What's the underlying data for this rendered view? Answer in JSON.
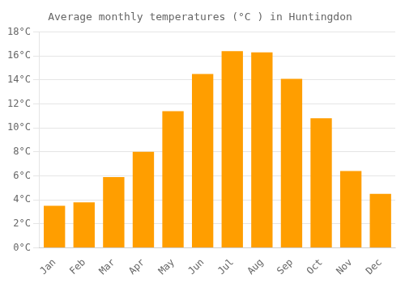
{
  "chart_data": {
    "type": "bar",
    "title": "Average monthly temperatures (°C ) in Huntingdon",
    "categories": [
      "Jan",
      "Feb",
      "Mar",
      "Apr",
      "May",
      "Jun",
      "Jul",
      "Aug",
      "Sep",
      "Oct",
      "Nov",
      "Dec"
    ],
    "values": [
      3.5,
      3.8,
      5.9,
      8.0,
      11.4,
      14.5,
      16.4,
      16.3,
      14.1,
      10.8,
      6.4,
      4.5
    ],
    "color": "#ff9e00",
    "ylim": [
      0,
      18
    ],
    "yticks": [
      {
        "value": 0,
        "label": "0°C"
      },
      {
        "value": 2,
        "label": "2°C"
      },
      {
        "value": 4,
        "label": "4°C"
      },
      {
        "value": 6,
        "label": "6°C"
      },
      {
        "value": 8,
        "label": "8°C"
      },
      {
        "value": 10,
        "label": "10°C"
      },
      {
        "value": 12,
        "label": "12°C"
      },
      {
        "value": 14,
        "label": "14°C"
      },
      {
        "value": 16,
        "label": "16°C"
      },
      {
        "value": 18,
        "label": "18°C"
      }
    ],
    "grid": true
  }
}
